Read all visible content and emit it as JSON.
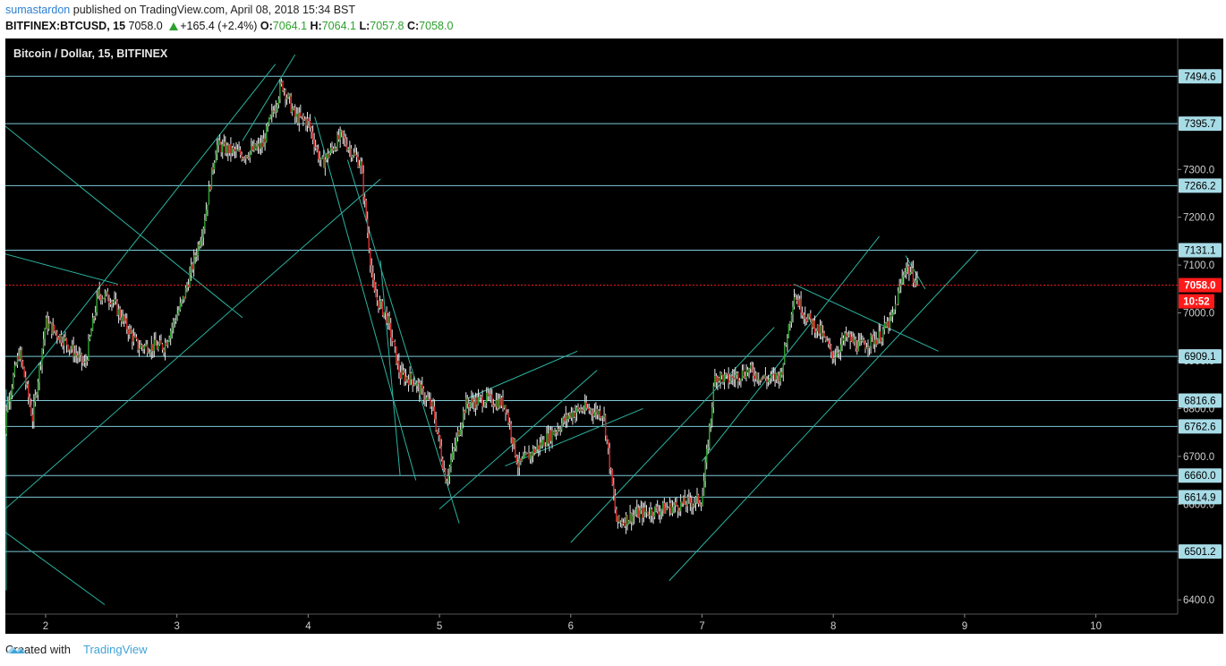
{
  "header": {
    "user": "sumastardon",
    "published_text": "published on TradingView.com, April 08, 2018 15:34 BST",
    "symbol": "BITFINEX:BTCUSD, 15",
    "last": "7058.0",
    "change": "+165.4 (+2.4%)",
    "o_label": "O:",
    "o": "7064.1",
    "h_label": "H:",
    "h": "7064.1",
    "l_label": "L:",
    "l": "7057.8",
    "c_label": "C:",
    "c": "7058.0"
  },
  "chart_title": "Bitcoin / Dollar, 15, BITFINEX",
  "footer": {
    "created_with": "Created with",
    "brand": "TradingView"
  },
  "colors": {
    "background": "#000000",
    "up": "#2ca02c",
    "down": "#d62728",
    "level_line": "#7ec8d8",
    "trend_line": "#2ab3a0",
    "current_price": "#ff1a1a"
  },
  "chart_data": {
    "type": "candlestick",
    "title": "Bitcoin / Dollar, 15, BITFINEX",
    "x_ticks": [
      "2",
      "3",
      "4",
      "5",
      "6",
      "7",
      "8",
      "9",
      "10"
    ],
    "y_ticks": [
      "6400.0",
      "6500.0",
      "6600.0",
      "6700.0",
      "6800.0",
      "6900.0",
      "7000.0",
      "7100.0",
      "7200.0",
      "7300.0"
    ],
    "ylim": [
      6350,
      7530
    ],
    "horizontal_levels": [
      "7494.6",
      "7395.7",
      "7266.2",
      "7131.1",
      "6909.1",
      "6816.6",
      "6762.6",
      "6660.0",
      "6614.9",
      "6501.2"
    ],
    "current_price": "7058.0",
    "countdown": "10:52",
    "close_path": [
      [
        1.65,
        6450
      ],
      [
        1.7,
        6800
      ],
      [
        1.8,
        6920
      ],
      [
        1.9,
        6780
      ],
      [
        2.0,
        6980
      ],
      [
        2.15,
        6940
      ],
      [
        2.3,
        6890
      ],
      [
        2.4,
        7040
      ],
      [
        2.5,
        7030
      ],
      [
        2.7,
        6930
      ],
      [
        2.9,
        6930
      ],
      [
        3.05,
        7030
      ],
      [
        3.2,
        7180
      ],
      [
        3.3,
        7350
      ],
      [
        3.5,
        7330
      ],
      [
        3.65,
        7350
      ],
      [
        3.8,
        7480
      ],
      [
        3.9,
        7410
      ],
      [
        4.0,
        7400
      ],
      [
        4.1,
        7310
      ],
      [
        4.25,
        7370
      ],
      [
        4.4,
        7310
      ],
      [
        4.5,
        7040
      ],
      [
        4.6,
        6990
      ],
      [
        4.7,
        6870
      ],
      [
        4.8,
        6860
      ],
      [
        4.95,
        6800
      ],
      [
        5.05,
        6650
      ],
      [
        5.2,
        6810
      ],
      [
        5.35,
        6820
      ],
      [
        5.5,
        6810
      ],
      [
        5.6,
        6680
      ],
      [
        5.75,
        6720
      ],
      [
        5.9,
        6760
      ],
      [
        6.0,
        6790
      ],
      [
        6.1,
        6800
      ],
      [
        6.25,
        6790
      ],
      [
        6.35,
        6560
      ],
      [
        6.5,
        6580
      ],
      [
        6.7,
        6590
      ],
      [
        6.85,
        6600
      ],
      [
        7.0,
        6610
      ],
      [
        7.1,
        6870
      ],
      [
        7.2,
        6860
      ],
      [
        7.35,
        6880
      ],
      [
        7.5,
        6860
      ],
      [
        7.6,
        6870
      ],
      [
        7.7,
        7040
      ],
      [
        7.8,
        6990
      ],
      [
        7.9,
        6960
      ],
      [
        8.0,
        6910
      ],
      [
        8.1,
        6950
      ],
      [
        8.2,
        6930
      ],
      [
        8.35,
        6950
      ],
      [
        8.45,
        6990
      ],
      [
        8.55,
        7100
      ],
      [
        8.65,
        7060
      ]
    ]
  }
}
